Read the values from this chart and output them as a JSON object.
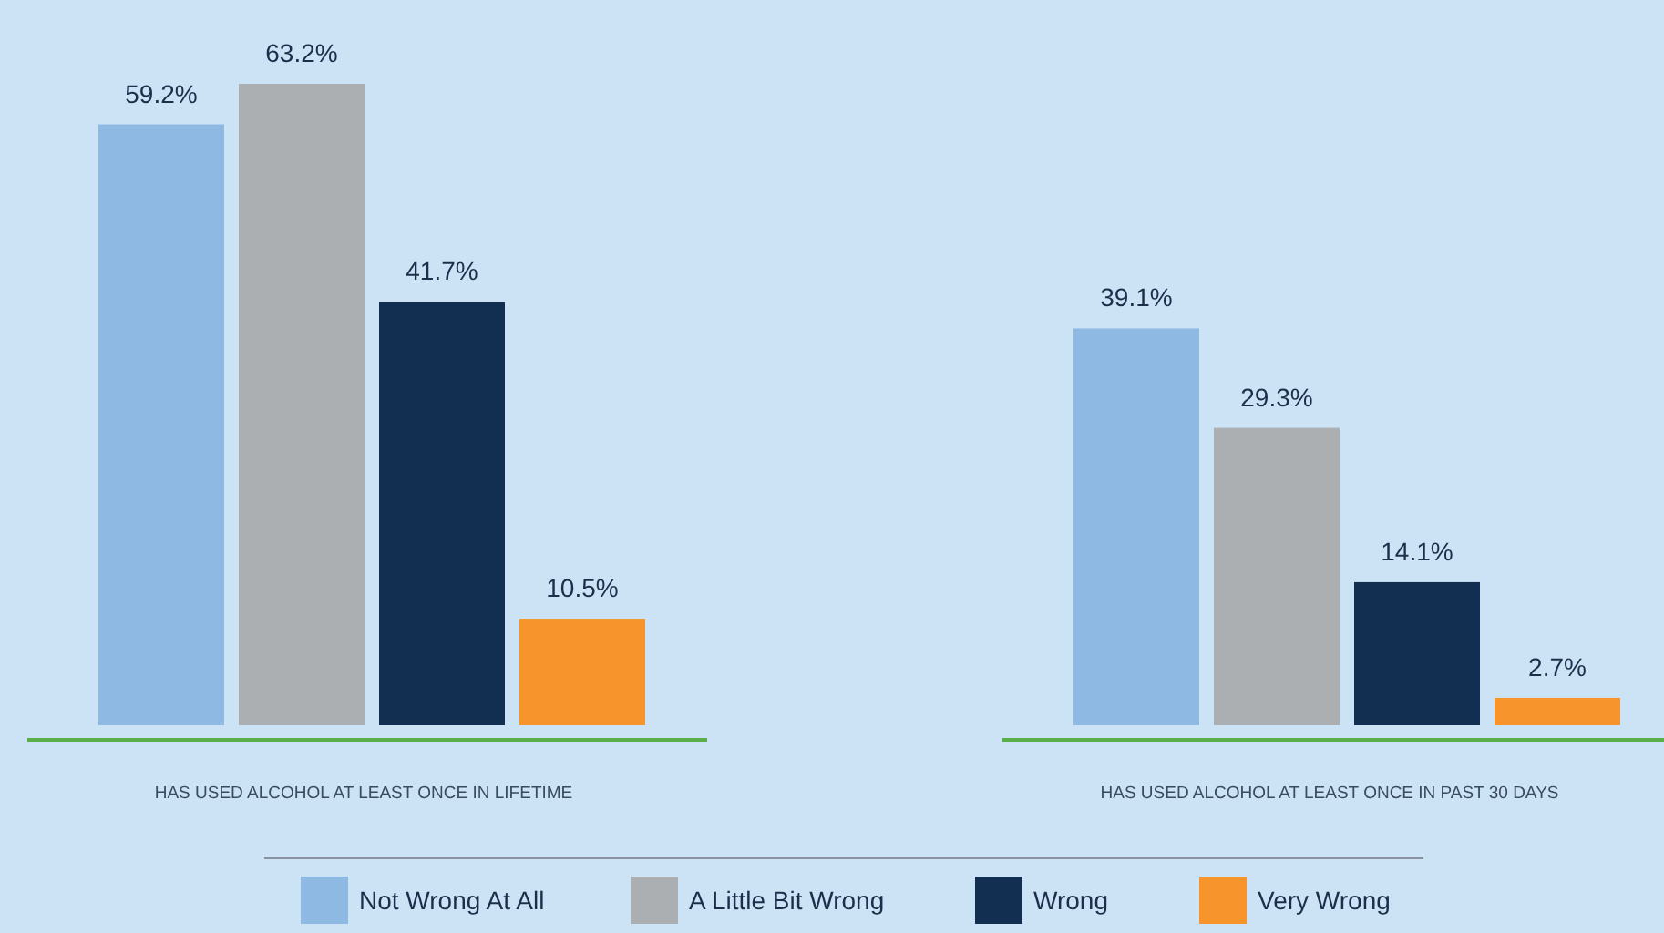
{
  "chart_data": {
    "type": "bar",
    "categories": [
      "HAS USED ALCOHOL AT LEAST ONCE IN LIFETIME",
      "HAS USED ALCOHOL AT LEAST ONCE IN PAST 30 DAYS"
    ],
    "series": [
      {
        "name": "Not Wrong At All",
        "color": "#8db9e3",
        "values": [
          59.2,
          39.1
        ],
        "value_labels": [
          "59.2%",
          "39.1%"
        ]
      },
      {
        "name": "A Little Bit Wrong",
        "color": "#abafb1",
        "values": [
          63.2,
          29.3
        ],
        "value_labels": [
          "63.2%",
          "29.3%"
        ]
      },
      {
        "name": "Wrong",
        "color": "#122f52",
        "values": [
          41.7,
          14.1
        ],
        "value_labels": [
          "41.7%",
          "14.1%"
        ]
      },
      {
        "name": "Very Wrong",
        "color": "#f7952c",
        "values": [
          10.5,
          2.7
        ],
        "value_labels": [
          "10.5%",
          "2.7%"
        ]
      }
    ],
    "legend": "bottom"
  }
}
